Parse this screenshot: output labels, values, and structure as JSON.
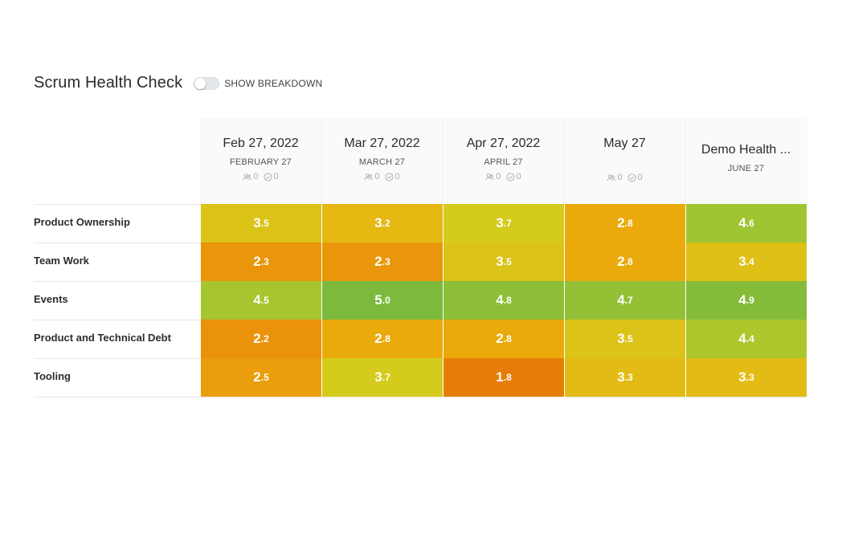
{
  "header": {
    "title": "Scrum Health Check",
    "toggle_label": "SHOW BREAKDOWN"
  },
  "columns": [
    {
      "title": "Feb 27, 2022",
      "subtitle": "FEBRUARY 27",
      "participants": "0",
      "completed": "0"
    },
    {
      "title": "Mar 27, 2022",
      "subtitle": "MARCH 27",
      "participants": "0",
      "completed": "0"
    },
    {
      "title": "Apr 27, 2022",
      "subtitle": "APRIL 27",
      "participants": "0",
      "completed": "0"
    },
    {
      "title": "May 27",
      "subtitle": "",
      "participants": "0",
      "completed": "0"
    },
    {
      "title": "Demo Health ...",
      "subtitle": "JUNE 27"
    }
  ],
  "rows": [
    {
      "label": "Product Ownership",
      "cells": [
        {
          "int": "3",
          "dec": "5",
          "color": "#dbc318"
        },
        {
          "int": "3",
          "dec": "2",
          "color": "#e5b812"
        },
        {
          "int": "3",
          "dec": "7",
          "color": "#d4cb1c"
        },
        {
          "int": "2",
          "dec": "8",
          "color": "#ebaa0b"
        },
        {
          "int": "4",
          "dec": "6",
          "color": "#a0c532"
        }
      ]
    },
    {
      "label": "Team Work",
      "cells": [
        {
          "int": "2",
          "dec": "3",
          "color": "#e9960a"
        },
        {
          "int": "2",
          "dec": "3",
          "color": "#e9960a"
        },
        {
          "int": "3",
          "dec": "5",
          "color": "#dbc318"
        },
        {
          "int": "2",
          "dec": "8",
          "color": "#ebaa0b"
        },
        {
          "int": "3",
          "dec": "4",
          "color": "#dfc016"
        }
      ]
    },
    {
      "label": "Events",
      "cells": [
        {
          "int": "4",
          "dec": "5",
          "color": "#a6c52f"
        },
        {
          "int": "5",
          "dec": "0",
          "color": "#7cb93c"
        },
        {
          "int": "4",
          "dec": "8",
          "color": "#8dbe37"
        },
        {
          "int": "4",
          "dec": "7",
          "color": "#93c035"
        },
        {
          "int": "4",
          "dec": "9",
          "color": "#84bb39"
        }
      ]
    },
    {
      "label": "Product and Technical Debt",
      "cells": [
        {
          "int": "2",
          "dec": "2",
          "color": "#e9920a"
        },
        {
          "int": "2",
          "dec": "8",
          "color": "#ebaa0b"
        },
        {
          "int": "2",
          "dec": "8",
          "color": "#ebaa0b"
        },
        {
          "int": "3",
          "dec": "5",
          "color": "#dbc318"
        },
        {
          "int": "4",
          "dec": "4",
          "color": "#acc72c"
        }
      ]
    },
    {
      "label": "Tooling",
      "cells": [
        {
          "int": "2",
          "dec": "5",
          "color": "#ea9e0b"
        },
        {
          "int": "3",
          "dec": "7",
          "color": "#d4cb1c"
        },
        {
          "int": "1",
          "dec": "8",
          "color": "#e57d08"
        },
        {
          "int": "3",
          "dec": "3",
          "color": "#e2bc14"
        },
        {
          "int": "3",
          "dec": "3",
          "color": "#e2bc14"
        }
      ]
    }
  ],
  "icons": {
    "participants": "participants-icon",
    "completed": "check-circle-icon"
  }
}
